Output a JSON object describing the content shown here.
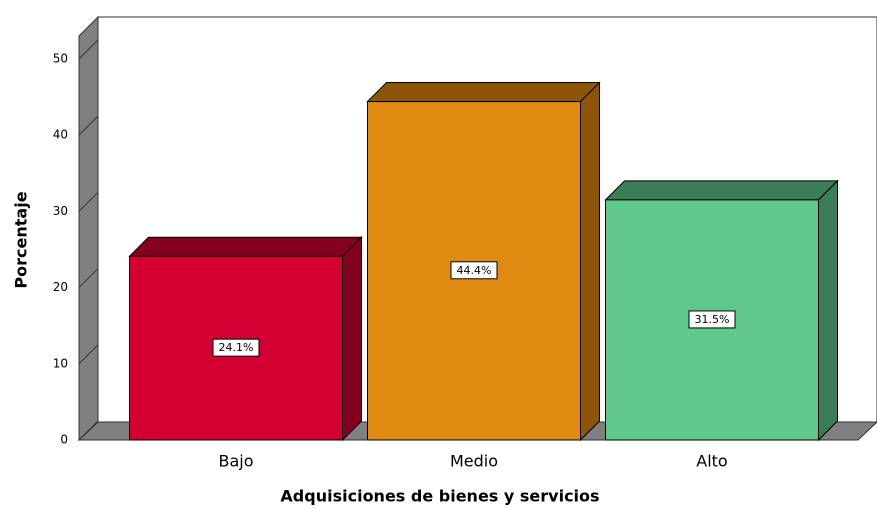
{
  "chart_data": {
    "type": "bar3d",
    "x_label": "Adquisiciones de bienes y servicios",
    "y_label": "Porcentaje",
    "categories": [
      "Bajo",
      "Medio",
      "Alto"
    ],
    "values": [
      24.1,
      44.4,
      31.5
    ],
    "value_labels": [
      "24.1%",
      "44.4%",
      "31.5%"
    ],
    "colors": [
      "#d50032",
      "#e08a12",
      "#5fc98b"
    ],
    "side_colors": [
      "#85001f",
      "#8e5508",
      "#3b7d56"
    ],
    "ylim": [
      0,
      53
    ],
    "yticks": [
      0,
      10,
      20,
      30,
      40,
      50
    ]
  }
}
